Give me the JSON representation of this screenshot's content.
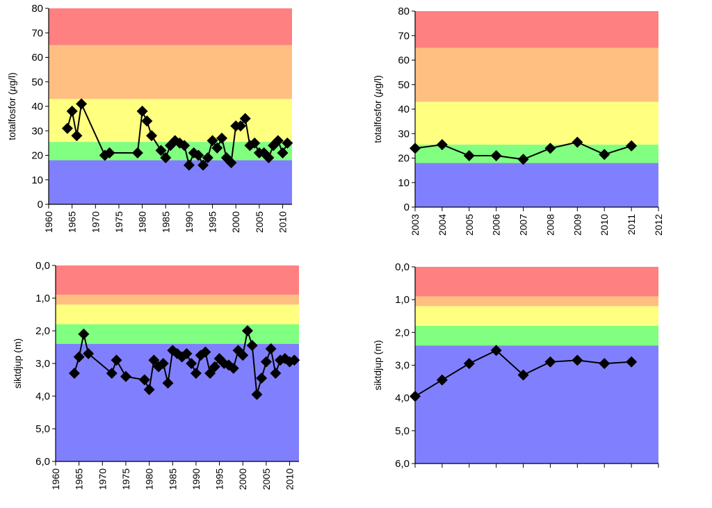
{
  "colors": {
    "red": "#ff8080",
    "orange": "#ffbf80",
    "yellow": "#ffff80",
    "green": "#80ff80",
    "blue": "#8080ff",
    "marker": "#000000"
  },
  "chart_data": [
    {
      "id": "tp-long",
      "type": "line",
      "title": "",
      "ylabel": "totalfosfor (µg/l)",
      "ylabel_parts": [
        "totalfosfor (",
        "µ",
        "g/l)"
      ],
      "xlabel": "",
      "xlim": [
        1960,
        2012
      ],
      "ylim": [
        0,
        80
      ],
      "inverted_y": false,
      "x_ticks": [
        "1960",
        "1965",
        "1970",
        "1975",
        "1980",
        "1985",
        "1990",
        "1995",
        "2000",
        "2005",
        "2010"
      ],
      "y_ticks": [
        "0",
        "10",
        "20",
        "30",
        "40",
        "50",
        "60",
        "70",
        "80"
      ],
      "bands": [
        {
          "from": 0,
          "to": 18,
          "color": "blue"
        },
        {
          "from": 18,
          "to": 25.5,
          "color": "green"
        },
        {
          "from": 25.5,
          "to": 43,
          "color": "yellow"
        },
        {
          "from": 43,
          "to": 65,
          "color": "orange"
        },
        {
          "from": 65,
          "to": 80,
          "color": "red"
        }
      ],
      "x": [
        1964,
        1965,
        1966,
        1967,
        1972,
        1973,
        1979,
        1980,
        1981,
        1982,
        1984,
        1985,
        1986,
        1987,
        1988,
        1989,
        1990,
        1991,
        1992,
        1993,
        1994,
        1995,
        1996,
        1997,
        1998,
        1999,
        2000,
        2001,
        2002,
        2003,
        2004,
        2005,
        2006,
        2007,
        2008,
        2009,
        2010,
        2011
      ],
      "values": [
        31,
        38,
        28,
        41,
        20,
        21,
        21,
        38,
        34,
        28,
        22,
        19,
        24,
        26,
        25,
        24,
        16,
        21,
        20,
        16,
        19,
        26,
        23,
        27,
        19,
        17,
        32,
        32,
        35,
        24,
        25,
        21,
        21,
        19,
        24,
        26,
        21,
        25
      ]
    },
    {
      "id": "tp-short",
      "type": "line",
      "title": "",
      "ylabel": "totalfosfor (µg/l)",
      "ylabel_parts": [
        "totalfosfor (",
        "µ",
        "g/l)"
      ],
      "xlabel": "",
      "xlim": [
        2003,
        2012
      ],
      "ylim": [
        0,
        80
      ],
      "inverted_y": false,
      "x_ticks": [
        "2003",
        "2004",
        "2005",
        "2006",
        "2007",
        "2008",
        "2009",
        "2010",
        "2011",
        "2012"
      ],
      "y_ticks": [
        "0",
        "10",
        "20",
        "30",
        "40",
        "50",
        "60",
        "70",
        "80"
      ],
      "bands": [
        {
          "from": 0,
          "to": 18,
          "color": "blue"
        },
        {
          "from": 18,
          "to": 25.5,
          "color": "green"
        },
        {
          "from": 25.5,
          "to": 43,
          "color": "yellow"
        },
        {
          "from": 43,
          "to": 65,
          "color": "orange"
        },
        {
          "from": 65,
          "to": 80,
          "color": "red"
        }
      ],
      "x": [
        2003,
        2004,
        2005,
        2006,
        2007,
        2008,
        2009,
        2010,
        2011
      ],
      "values": [
        24,
        25.5,
        21,
        21,
        19.5,
        24,
        26.5,
        21.5,
        25
      ]
    },
    {
      "id": "secchi-long",
      "type": "line",
      "title": "",
      "ylabel": "siktdjup (m)",
      "xlabel": "",
      "xlim": [
        1960,
        2012
      ],
      "ylim": [
        0,
        6
      ],
      "inverted_y": true,
      "x_ticks": [
        "1960",
        "1965",
        "1970",
        "1975",
        "1980",
        "1985",
        "1990",
        "1995",
        "2000",
        "2005",
        "2010"
      ],
      "y_ticks": [
        "0,0",
        "1,0",
        "2,0",
        "3,0",
        "4,0",
        "5,0",
        "6,0"
      ],
      "bands": [
        {
          "from": 0,
          "to": 0.9,
          "color": "red"
        },
        {
          "from": 0.9,
          "to": 1.2,
          "color": "orange"
        },
        {
          "from": 1.2,
          "to": 1.8,
          "color": "yellow"
        },
        {
          "from": 1.8,
          "to": 2.4,
          "color": "green"
        },
        {
          "from": 2.4,
          "to": 6,
          "color": "blue"
        }
      ],
      "x": [
        1964,
        1965,
        1966,
        1967,
        1972,
        1973,
        1975,
        1979,
        1980,
        1981,
        1982,
        1983,
        1984,
        1985,
        1986,
        1987,
        1988,
        1989,
        1990,
        1991,
        1992,
        1993,
        1994,
        1995,
        1996,
        1997,
        1998,
        1999,
        2000,
        2001,
        2002,
        2003,
        2004,
        2005,
        2006,
        2007,
        2008,
        2009,
        2010,
        2011
      ],
      "values": [
        3.3,
        2.8,
        2.1,
        2.7,
        3.3,
        2.9,
        3.4,
        3.5,
        3.8,
        2.9,
        3.1,
        3.0,
        3.6,
        2.6,
        2.7,
        2.8,
        2.7,
        3.0,
        3.3,
        2.75,
        2.65,
        3.3,
        3.1,
        2.85,
        3.0,
        3.05,
        3.15,
        2.6,
        2.75,
        2.0,
        2.45,
        3.95,
        3.45,
        2.95,
        2.55,
        3.3,
        2.9,
        2.85,
        2.95,
        2.9
      ]
    },
    {
      "id": "secchi-short",
      "type": "line",
      "title": "",
      "ylabel": "siktdjup (m)",
      "xlabel": "",
      "xlim": [
        2003,
        2012
      ],
      "ylim": [
        0,
        6
      ],
      "inverted_y": true,
      "x_ticks": [],
      "tick_count": 10,
      "y_ticks": [
        "0,0",
        "1,0",
        "2,0",
        "3,0",
        "4,0",
        "5,0",
        "6,0"
      ],
      "bands": [
        {
          "from": 0,
          "to": 0.9,
          "color": "red"
        },
        {
          "from": 0.9,
          "to": 1.2,
          "color": "orange"
        },
        {
          "from": 1.2,
          "to": 1.8,
          "color": "yellow"
        },
        {
          "from": 1.8,
          "to": 2.4,
          "color": "green"
        },
        {
          "from": 2.4,
          "to": 6,
          "color": "blue"
        }
      ],
      "x": [
        2003,
        2004,
        2005,
        2006,
        2007,
        2008,
        2009,
        2010,
        2011
      ],
      "values": [
        3.95,
        3.45,
        2.95,
        2.55,
        3.3,
        2.9,
        2.85,
        2.95,
        2.9
      ]
    }
  ]
}
